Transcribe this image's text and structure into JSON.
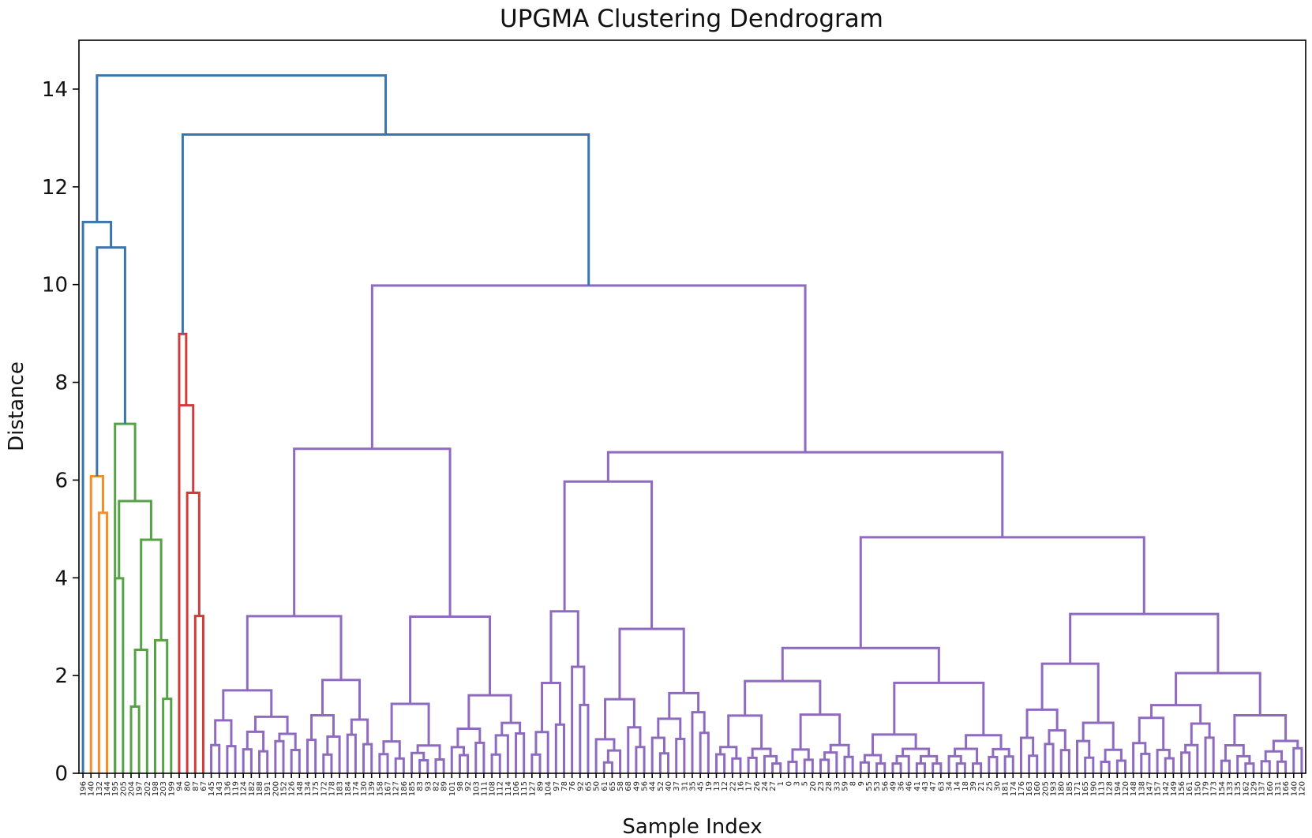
{
  "chart_data": {
    "type": "dendrogram",
    "title": "UPGMA Clustering Dendrogram",
    "xlabel": "Sample Index",
    "ylabel": "Distance",
    "ylim": [
      0,
      15
    ],
    "yticks": [
      0,
      2,
      4,
      6,
      8,
      10,
      12,
      14
    ],
    "grid": false,
    "colors": {
      "above_threshold": "#3a75b0",
      "cluster_orange": "#f28e2b",
      "cluster_green": "#55a346",
      "cluster_red": "#d13b3b",
      "cluster_purple": "#8e6bbf"
    },
    "leaves": [
      "196",
      "140",
      "132",
      "144",
      "195",
      "205",
      "204",
      "197",
      "202",
      "198",
      "203",
      "199",
      "94",
      "80",
      "87",
      "67",
      "145",
      "143",
      "136",
      "119",
      "124",
      "182",
      "188",
      "191",
      "200",
      "152",
      "126",
      "148",
      "134",
      "175",
      "172",
      "178",
      "183",
      "184",
      "174",
      "130",
      "139",
      "158",
      "167",
      "127",
      "186",
      "185",
      "83",
      "93",
      "82",
      "89",
      "101",
      "98",
      "92",
      "103",
      "111",
      "108",
      "112",
      "114",
      "106",
      "115",
      "127",
      "89",
      "104",
      "97",
      "78",
      "76",
      "92",
      "65",
      "50",
      "61",
      "65",
      "58",
      "68",
      "49",
      "56",
      "44",
      "52",
      "40",
      "37",
      "31",
      "35",
      "45",
      "19",
      "13",
      "12",
      "22",
      "16",
      "17",
      "26",
      "24",
      "27",
      "1",
      "0",
      "3",
      "5",
      "20",
      "23",
      "28",
      "33",
      "59",
      "8",
      "9",
      "55",
      "53",
      "56",
      "49",
      "36",
      "46",
      "41",
      "43",
      "47",
      "63",
      "34",
      "14",
      "18",
      "39",
      "21",
      "25",
      "30",
      "181",
      "174",
      "176",
      "163",
      "160",
      "205",
      "193",
      "180",
      "185",
      "171",
      "165",
      "190",
      "113",
      "128",
      "194",
      "120",
      "148",
      "138",
      "147",
      "157",
      "142",
      "149",
      "156",
      "161",
      "150",
      "179",
      "173",
      "154",
      "133",
      "135",
      "162",
      "129",
      "137",
      "160",
      "131",
      "166",
      "140",
      "120"
    ],
    "links": [
      {
        "c": "above_threshold",
        "h": 14.28,
        "l": "A",
        "r": "B"
      },
      {
        "c": "above_threshold",
        "h": 13.07,
        "l": "RED",
        "r": "PURPLE"
      },
      {
        "c": "above_threshold",
        "h": 11.28,
        "l": "L0",
        "r": "C"
      },
      {
        "c": "above_threshold",
        "h": 10.76,
        "l": "ORANGE",
        "r": "GREEN"
      },
      {
        "c": "cluster_orange",
        "h": 6.08,
        "l": "L1",
        "r": "O2"
      },
      {
        "c": "cluster_orange",
        "h": 5.33,
        "l": "L2",
        "r": "L3"
      },
      {
        "c": "cluster_green",
        "h": 7.15,
        "l": "G1",
        "r": "G2"
      },
      {
        "c": "cluster_green",
        "h": 5.57,
        "l": "G1a",
        "r": "G2a"
      },
      {
        "c": "cluster_green",
        "h": 4.78,
        "l": "G3",
        "r": "G4"
      },
      {
        "c": "cluster_green",
        "h": 3.99,
        "l": "G5",
        "r": "G6"
      },
      {
        "c": "cluster_green",
        "h": 3.34,
        "l": "G7",
        "r": "G8"
      },
      {
        "c": "cluster_green",
        "h": 2.8,
        "l": "G9",
        "r": "G10"
      },
      {
        "c": "cluster_green",
        "h": 2.46,
        "l": "G11",
        "r": "G12"
      },
      {
        "c": "cluster_green",
        "h": 2.3,
        "l": "G13",
        "r": "G14"
      },
      {
        "c": "cluster_red",
        "h": 8.99,
        "l": "R1",
        "r": "R2"
      },
      {
        "c": "cluster_red",
        "h": 7.53,
        "l": "R3",
        "r": "R4"
      },
      {
        "c": "cluster_red",
        "h": 6.62,
        "l": "R5",
        "r": "R6"
      },
      {
        "c": "cluster_red",
        "h": 5.74,
        "l": "R7",
        "r": "R8"
      },
      {
        "c": "cluster_red",
        "h": 5.07,
        "l": "R9",
        "r": "R10"
      },
      {
        "c": "cluster_purple",
        "h": 9.98,
        "l": "P1",
        "r": "P2"
      },
      {
        "c": "cluster_purple",
        "h": 9.08,
        "l": "P3",
        "r": "P4"
      },
      {
        "c": "cluster_purple",
        "h": 8.72,
        "l": "P5",
        "r": "P6"
      },
      {
        "c": "cluster_purple",
        "h": 7.14,
        "l": "P7",
        "r": "P8"
      },
      {
        "c": "cluster_purple",
        "h": 6.64,
        "l": "P9",
        "r": "P10"
      },
      {
        "c": "cluster_purple",
        "h": 6.6,
        "l": "P11",
        "r": "P12"
      },
      {
        "c": "cluster_purple",
        "h": 6.57,
        "l": "P13",
        "r": "P14"
      },
      {
        "c": "cluster_purple",
        "h": 6.43,
        "l": "P15",
        "r": "P16"
      },
      {
        "c": "cluster_purple",
        "h": 5.97,
        "l": "P17",
        "r": "P18"
      },
      {
        "c": "cluster_purple",
        "h": 5.6,
        "l": "P19",
        "r": "P20"
      },
      {
        "c": "cluster_purple",
        "h": 5.54,
        "l": "P21",
        "r": "P22"
      },
      {
        "c": "cluster_purple",
        "h": 5.35,
        "l": "P23",
        "r": "P24"
      },
      {
        "c": "cluster_purple",
        "h": 5.24,
        "l": "P25",
        "r": "P26"
      },
      {
        "c": "cluster_purple",
        "h": 5.01,
        "l": "P27",
        "r": "P28"
      },
      {
        "c": "cluster_purple",
        "h": 4.83,
        "l": "P29",
        "r": "P30"
      },
      {
        "c": "cluster_purple",
        "h": 4.66,
        "l": "P31",
        "r": "P32"
      },
      {
        "c": "cluster_purple",
        "h": 4.35,
        "l": "P33",
        "r": "P34"
      },
      {
        "c": "cluster_purple",
        "h": 4.3,
        "l": "P35",
        "r": "P36"
      },
      {
        "c": "cluster_purple",
        "h": 4.26,
        "l": "P37",
        "r": "P38"
      },
      {
        "c": "cluster_purple",
        "h": 4.18,
        "l": "P39",
        "r": "P40"
      },
      {
        "c": "cluster_purple",
        "h": 4.13,
        "l": "P41",
        "r": "P42"
      },
      {
        "c": "cluster_purple",
        "h": 3.99,
        "l": "P43",
        "r": "P44"
      },
      {
        "c": "cluster_purple",
        "h": 3.81,
        "l": "P45",
        "r": "P46"
      },
      {
        "c": "cluster_purple",
        "h": 3.79,
        "l": "P47",
        "r": "P48"
      },
      {
        "c": "cluster_purple",
        "h": 3.77,
        "l": "P49",
        "r": "P50"
      },
      {
        "c": "cluster_purple",
        "h": 3.67,
        "l": "P51",
        "r": "P52"
      },
      {
        "c": "cluster_purple",
        "h": 3.64,
        "l": "P53",
        "r": "P54"
      },
      {
        "c": "cluster_purple",
        "h": 3.56,
        "l": "P55",
        "r": "P56"
      },
      {
        "c": "cluster_purple",
        "h": 3.47,
        "l": "P57",
        "r": "P58"
      },
      {
        "c": "cluster_purple",
        "h": 3.1,
        "l": "P59",
        "r": "P60"
      },
      {
        "c": "cluster_purple",
        "h": 3.02,
        "l": "P61",
        "r": "P62"
      },
      {
        "c": "cluster_purple",
        "h": 3.0,
        "l": "P63",
        "r": "P64"
      },
      {
        "c": "cluster_purple",
        "h": 2.58,
        "l": "P65",
        "r": "P66"
      },
      {
        "c": "cluster_purple",
        "h": 2.55,
        "l": "P67",
        "r": "P68"
      },
      {
        "c": "cluster_purple",
        "h": 1.91,
        "l": "P69",
        "r": "P70"
      }
    ]
  }
}
